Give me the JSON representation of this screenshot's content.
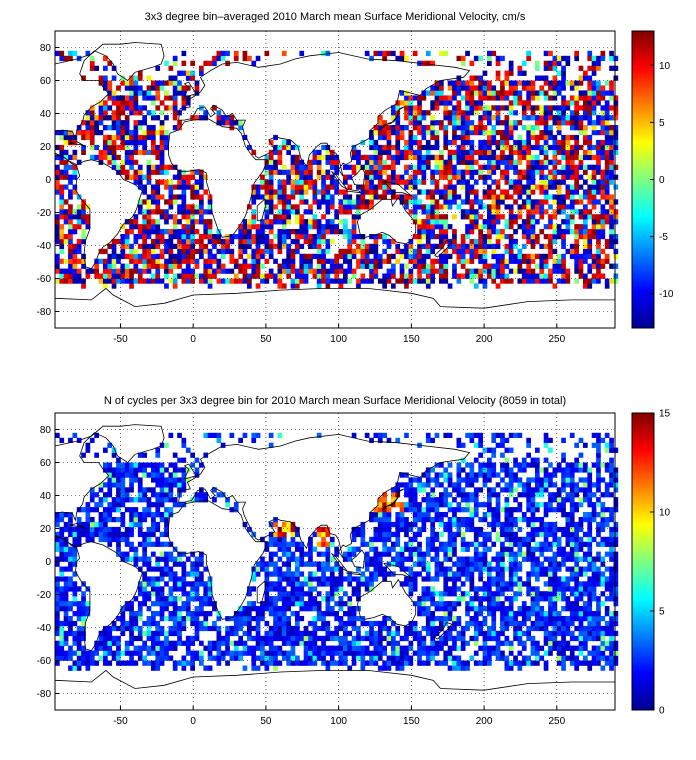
{
  "chart_data": [
    {
      "type": "heatmap",
      "title": "3x3 degree bin–averaged 2010 March mean Surface Meridional Velocity, cm/s",
      "xlabel": "",
      "ylabel": "",
      "xlim": [
        -95,
        290
      ],
      "ylim": [
        -90,
        90
      ],
      "x_ticks": [
        -50,
        0,
        50,
        100,
        150,
        200,
        250
      ],
      "y_ticks": [
        80,
        60,
        40,
        20,
        0,
        -20,
        -40,
        -60,
        -80
      ],
      "grid": true,
      "bin_size_deg": 3,
      "colorbar": {
        "range": [
          -13,
          13
        ],
        "ticks": [
          10,
          5,
          0,
          -5,
          -10
        ],
        "colormap": "jet"
      },
      "data_description": "Dense ocean-only bins with values spanning the full colour range (blue to dark red)."
    },
    {
      "type": "heatmap",
      "title": "N of cycles per 3x3 degree bin for 2010 March mean Surface Meridional Velocity (8059 in total)",
      "xlabel": "",
      "ylabel": "",
      "xlim": [
        -95,
        290
      ],
      "ylim": [
        -90,
        90
      ],
      "x_ticks": [
        -50,
        0,
        50,
        100,
        150,
        200,
        250
      ],
      "y_ticks": [
        80,
        60,
        40,
        20,
        0,
        -20,
        -40,
        -60,
        -80
      ],
      "grid": true,
      "bin_size_deg": 3,
      "colorbar": {
        "range": [
          0,
          15
        ],
        "ticks": [
          15,
          10,
          5,
          0
        ],
        "colormap": "jet"
      },
      "data_description": "Mostly low counts (blue) with a few high-count bins (orange/red) near Japan, the Arabian Sea and the Bay of Bengal."
    }
  ]
}
